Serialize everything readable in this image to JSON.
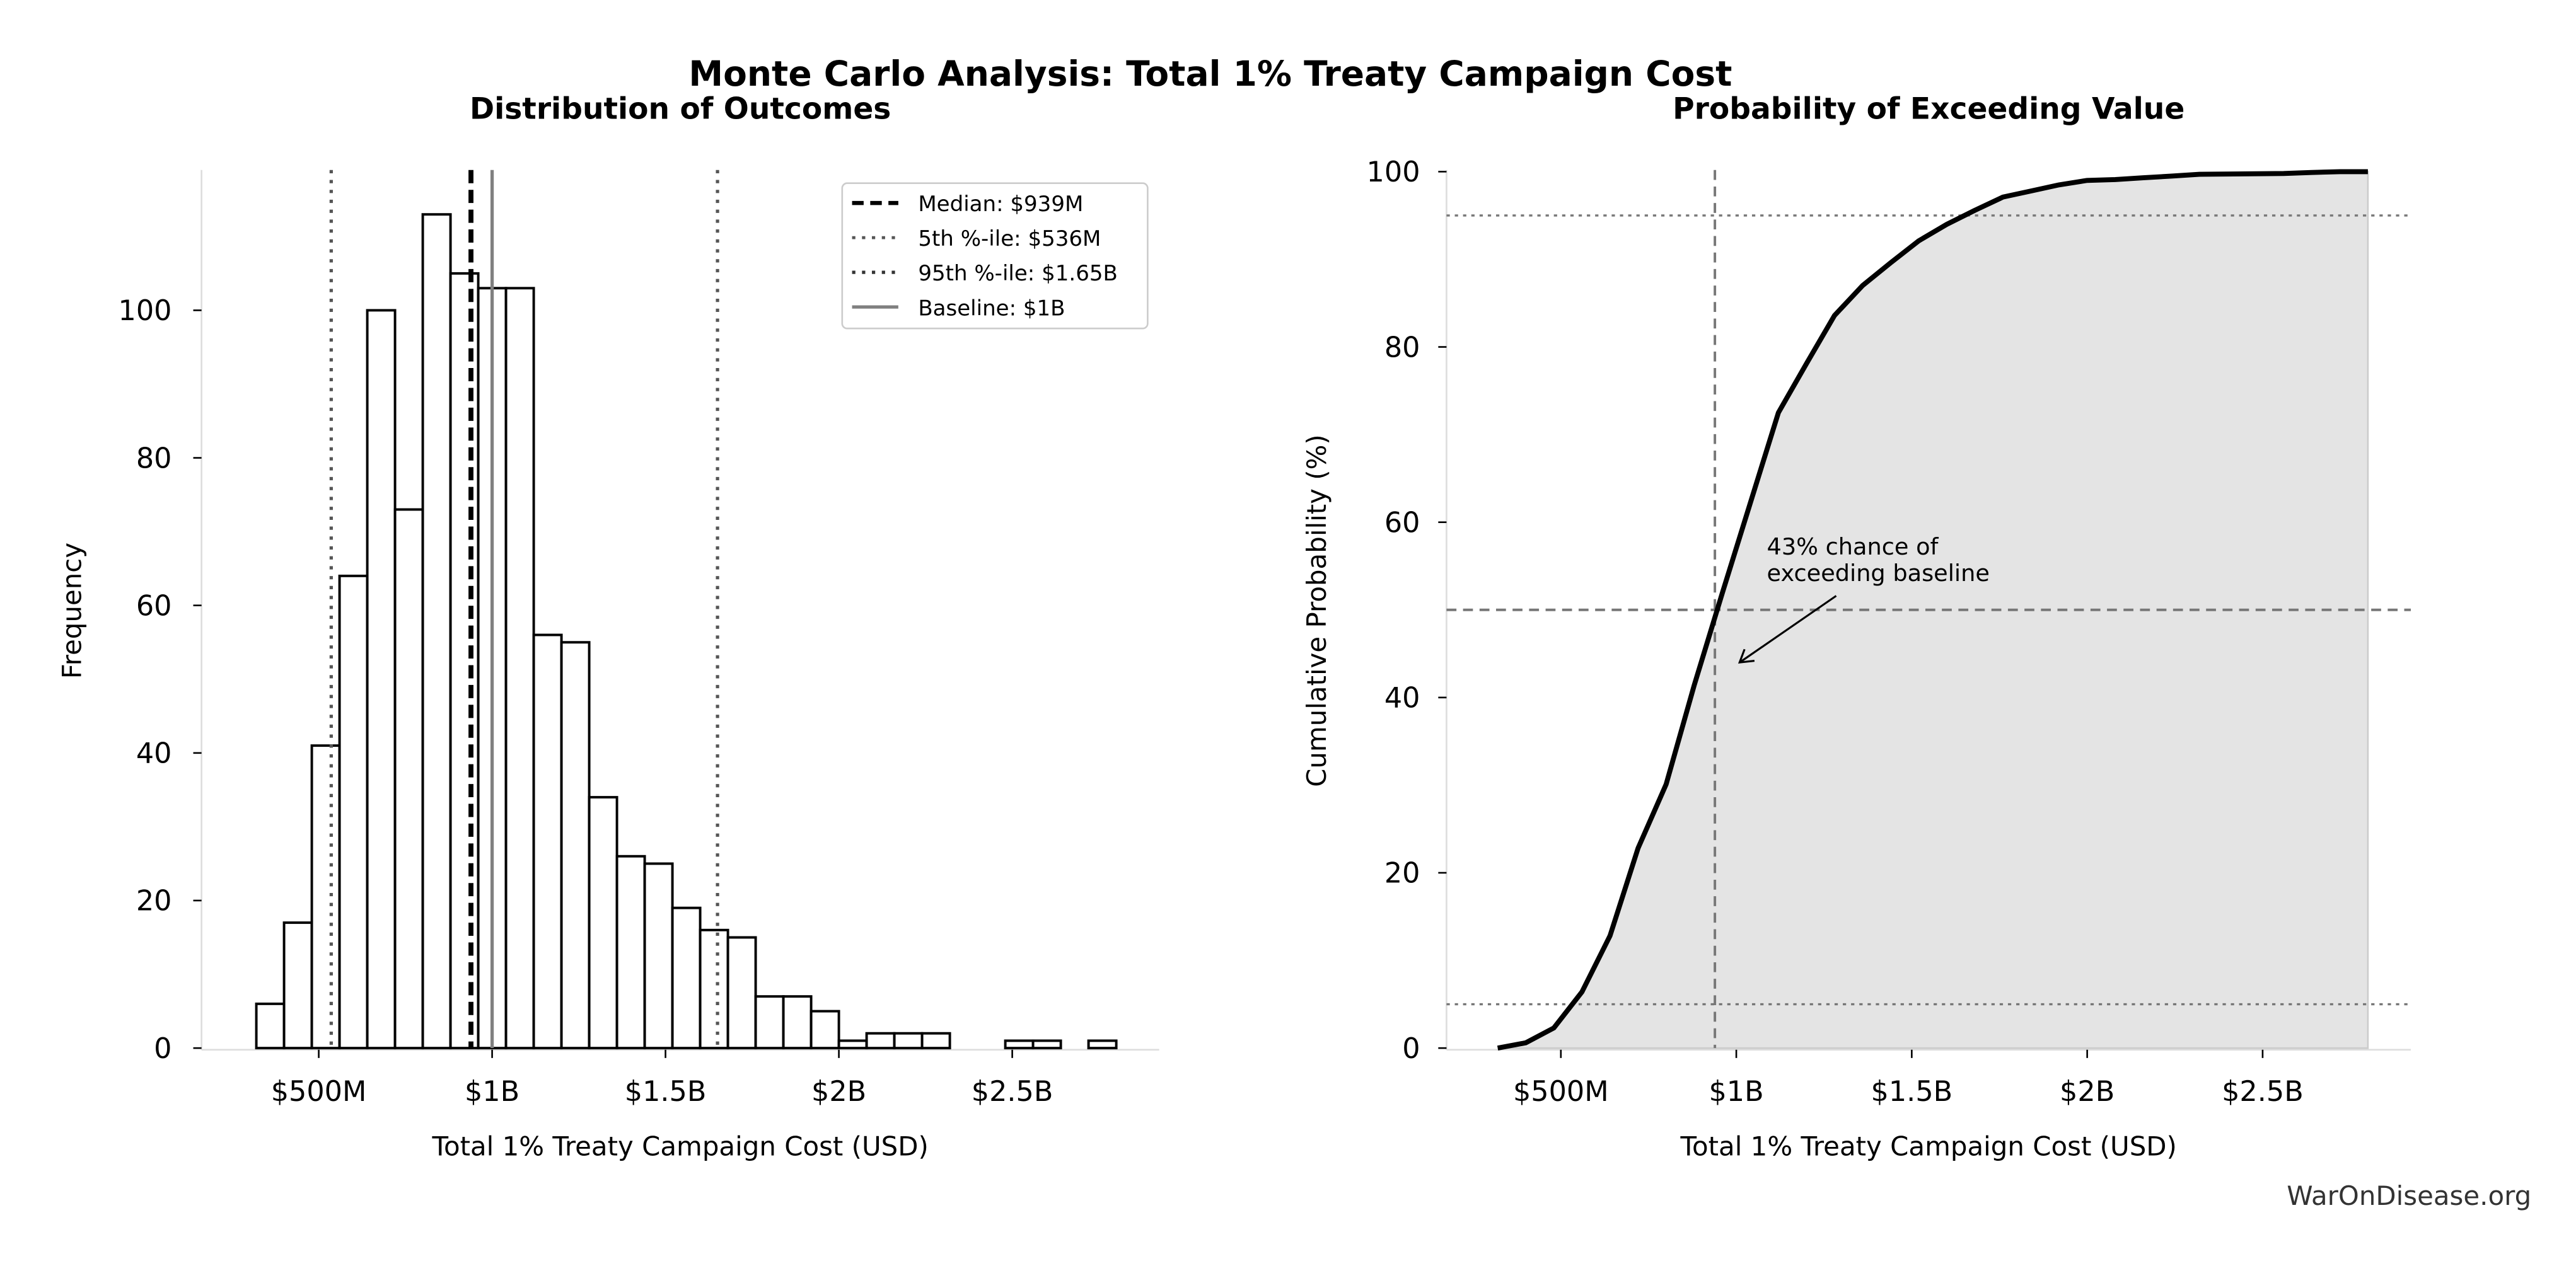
{
  "title": "Monte Carlo Analysis: Total 1% Treaty Campaign Cost",
  "watermark": "WarOnDisease.org",
  "colors": {
    "bar_edge": "#000000",
    "fill_cdf": "#e4e4e4",
    "baseline": "#808080",
    "ref": "#555555"
  },
  "chart_data": [
    {
      "type": "bar",
      "title": "Distribution of Outcomes",
      "xlabel": "Total 1% Treaty Campaign Cost (USD)",
      "ylabel": "Frequency",
      "bin_start_musd": 320,
      "bin_width_musd": 80,
      "counts": [
        6,
        17,
        41,
        64,
        100,
        73,
        113,
        105,
        103,
        103,
        56,
        55,
        34,
        26,
        25,
        19,
        16,
        15,
        7,
        7,
        5,
        1,
        2,
        2,
        2,
        0,
        0,
        1,
        1,
        0,
        1
      ],
      "xticks": [
        {
          "v": 500,
          "label": "$500M"
        },
        {
          "v": 1000,
          "label": "$1B"
        },
        {
          "v": 1500,
          "label": "$1.5B"
        },
        {
          "v": 2000,
          "label": "$2B"
        },
        {
          "v": 2500,
          "label": "$2.5B"
        }
      ],
      "yticks": [
        {
          "v": 0,
          "label": "0"
        },
        {
          "v": 20,
          "label": "20"
        },
        {
          "v": 40,
          "label": "40"
        },
        {
          "v": 60,
          "label": "60"
        },
        {
          "v": 80,
          "label": "80"
        },
        {
          "v": 100,
          "label": "100"
        }
      ],
      "ylim": [
        0,
        119
      ],
      "vlines": [
        {
          "v": 939,
          "label": "Median: $939M",
          "style": "dashed"
        },
        {
          "v": 536,
          "label": "5th %-ile: $536M",
          "style": "dotted"
        },
        {
          "v": 1650,
          "label": "95th %-ile: $1.65B",
          "style": "dotted"
        },
        {
          "v": 1000,
          "label": "Baseline: $1B",
          "style": "solid"
        }
      ],
      "legend_position": "top-right"
    },
    {
      "type": "area",
      "title": "Probability of Exceeding Value",
      "xlabel": "Total 1% Treaty Campaign Cost (USD)",
      "ylabel": "Cumulative Probability (%)",
      "x_musd": [
        320,
        400,
        480,
        560,
        640,
        720,
        800,
        880,
        960,
        1040,
        1120,
        1200,
        1280,
        1360,
        1440,
        1520,
        1600,
        1680,
        1760,
        1840,
        1920,
        2000,
        2080,
        2160,
        2240,
        2320,
        2560,
        2640,
        2720,
        2800
      ],
      "y_pct": [
        0,
        0.6,
        2.3,
        6.4,
        12.8,
        22.8,
        30.1,
        41.4,
        51.9,
        62.2,
        72.5,
        78.1,
        83.6,
        87,
        89.6,
        92.1,
        94,
        95.6,
        97.1,
        97.8,
        98.5,
        99,
        99.1,
        99.3,
        99.5,
        99.7,
        99.8,
        99.9,
        100,
        100
      ],
      "xticks": [
        {
          "v": 500,
          "label": "$500M"
        },
        {
          "v": 1000,
          "label": "$1B"
        },
        {
          "v": 1500,
          "label": "$1.5B"
        },
        {
          "v": 2000,
          "label": "$2B"
        },
        {
          "v": 2500,
          "label": "$2.5B"
        }
      ],
      "yticks": [
        {
          "v": 0,
          "label": "0"
        },
        {
          "v": 20,
          "label": "20"
        },
        {
          "v": 40,
          "label": "40"
        },
        {
          "v": 60,
          "label": "60"
        },
        {
          "v": 80,
          "label": "80"
        },
        {
          "v": 100,
          "label": "100"
        }
      ],
      "ylim": [
        0,
        100
      ],
      "hlines": [
        95,
        50,
        5
      ],
      "vline_musd": 939,
      "annotation": {
        "line1": "43% chance of",
        "line2": "exceeding baseline",
        "arrow_to_musd": 1000,
        "arrow_to_pct": 44
      }
    }
  ]
}
